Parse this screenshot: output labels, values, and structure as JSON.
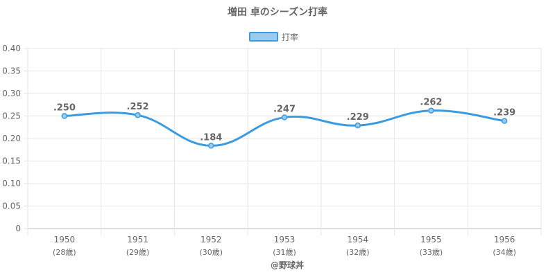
{
  "chart_data": {
    "type": "line",
    "title": "増田 卓のシーズン打率",
    "legend": {
      "position": "top",
      "label": "打率"
    },
    "categories": [
      "1950",
      "1951",
      "1952",
      "1953",
      "1954",
      "1955",
      "1956"
    ],
    "category_sublabels": [
      "(28歳)",
      "(29歳)",
      "(30歳)",
      "(31歳)",
      "(32歳)",
      "(33歳)",
      "(34歳)"
    ],
    "series": [
      {
        "name": "打率",
        "values": [
          0.25,
          0.252,
          0.184,
          0.247,
          0.229,
          0.262,
          0.239
        ],
        "labels": [
          ".250",
          ".252",
          ".184",
          ".247",
          ".229",
          ".262",
          ".239"
        ]
      }
    ],
    "ylim": [
      0,
      0.4
    ],
    "yticks": [
      "0",
      "0.05",
      "0.10",
      "0.15",
      "0.20",
      "0.25",
      "0.30",
      "0.35",
      "0.40"
    ],
    "grid": true,
    "colors": {
      "line": "#3b9be0",
      "fill": "#9ccbf0",
      "grid": "#e6e6e6",
      "text": "#666666"
    }
  },
  "credit": "@野球丼"
}
